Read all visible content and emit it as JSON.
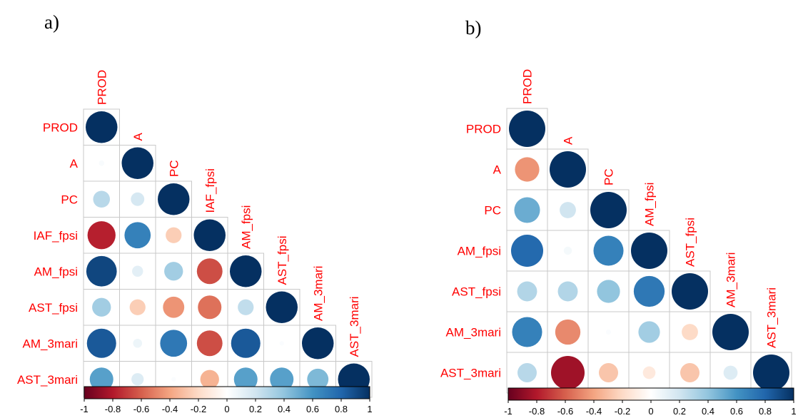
{
  "chart_data": [
    {
      "type": "heatmap",
      "panel_label": "a)",
      "variables": [
        "PROD",
        "A",
        "PC",
        "IAF_fpsi",
        "AM_fpsi",
        "AST_fpsi",
        "AM_3mari",
        "AST_3mari"
      ],
      "lower_triangle": [
        [
          1
        ],
        [
          0.03,
          1
        ],
        [
          0.28,
          0.18,
          1
        ],
        [
          -0.78,
          0.68,
          -0.25,
          1
        ],
        [
          0.92,
          0.12,
          0.35,
          -0.65,
          1
        ],
        [
          0.35,
          -0.25,
          -0.45,
          -0.55,
          0.25,
          1
        ],
        [
          0.85,
          0.08,
          0.72,
          -0.65,
          0.85,
          0.02,
          1
        ],
        [
          0.55,
          0.15,
          0.02,
          -0.35,
          0.55,
          0.55,
          0.45,
          1
        ]
      ],
      "colorbar": {
        "min": -1,
        "max": 1,
        "ticks": [
          "-1",
          "-0.8",
          "-0.6",
          "-0.4",
          "-0.2",
          "0",
          "0.2",
          "0.4",
          "0.6",
          "0.8",
          "1"
        ]
      }
    },
    {
      "type": "heatmap",
      "panel_label": "b)",
      "variables": [
        "PROD",
        "A",
        "PC",
        "AM_fpsi",
        "AST_fpsi",
        "AM_3mari",
        "AST_3mari"
      ],
      "lower_triangle": [
        [
          1
        ],
        [
          -0.45,
          1
        ],
        [
          0.5,
          0.2,
          1
        ],
        [
          0.78,
          0.05,
          0.68,
          1
        ],
        [
          0.3,
          0.3,
          0.4,
          0.72,
          1
        ],
        [
          0.68,
          -0.48,
          0.02,
          0.35,
          -0.2,
          1
        ],
        [
          0.28,
          -0.85,
          -0.28,
          -0.12,
          -0.28,
          0.15,
          1
        ]
      ],
      "colorbar": {
        "min": -1,
        "max": 1,
        "ticks": [
          "-1",
          "-0.8",
          "-0.6",
          "-0.4",
          "-0.2",
          "0",
          "0.2",
          "0.4",
          "0.6",
          "0.8",
          "1"
        ]
      }
    }
  ],
  "colors": {
    "negative_end": "#67001F",
    "positive_end": "#053061",
    "label": "#ff0000",
    "grid": "#c8c8c8"
  }
}
